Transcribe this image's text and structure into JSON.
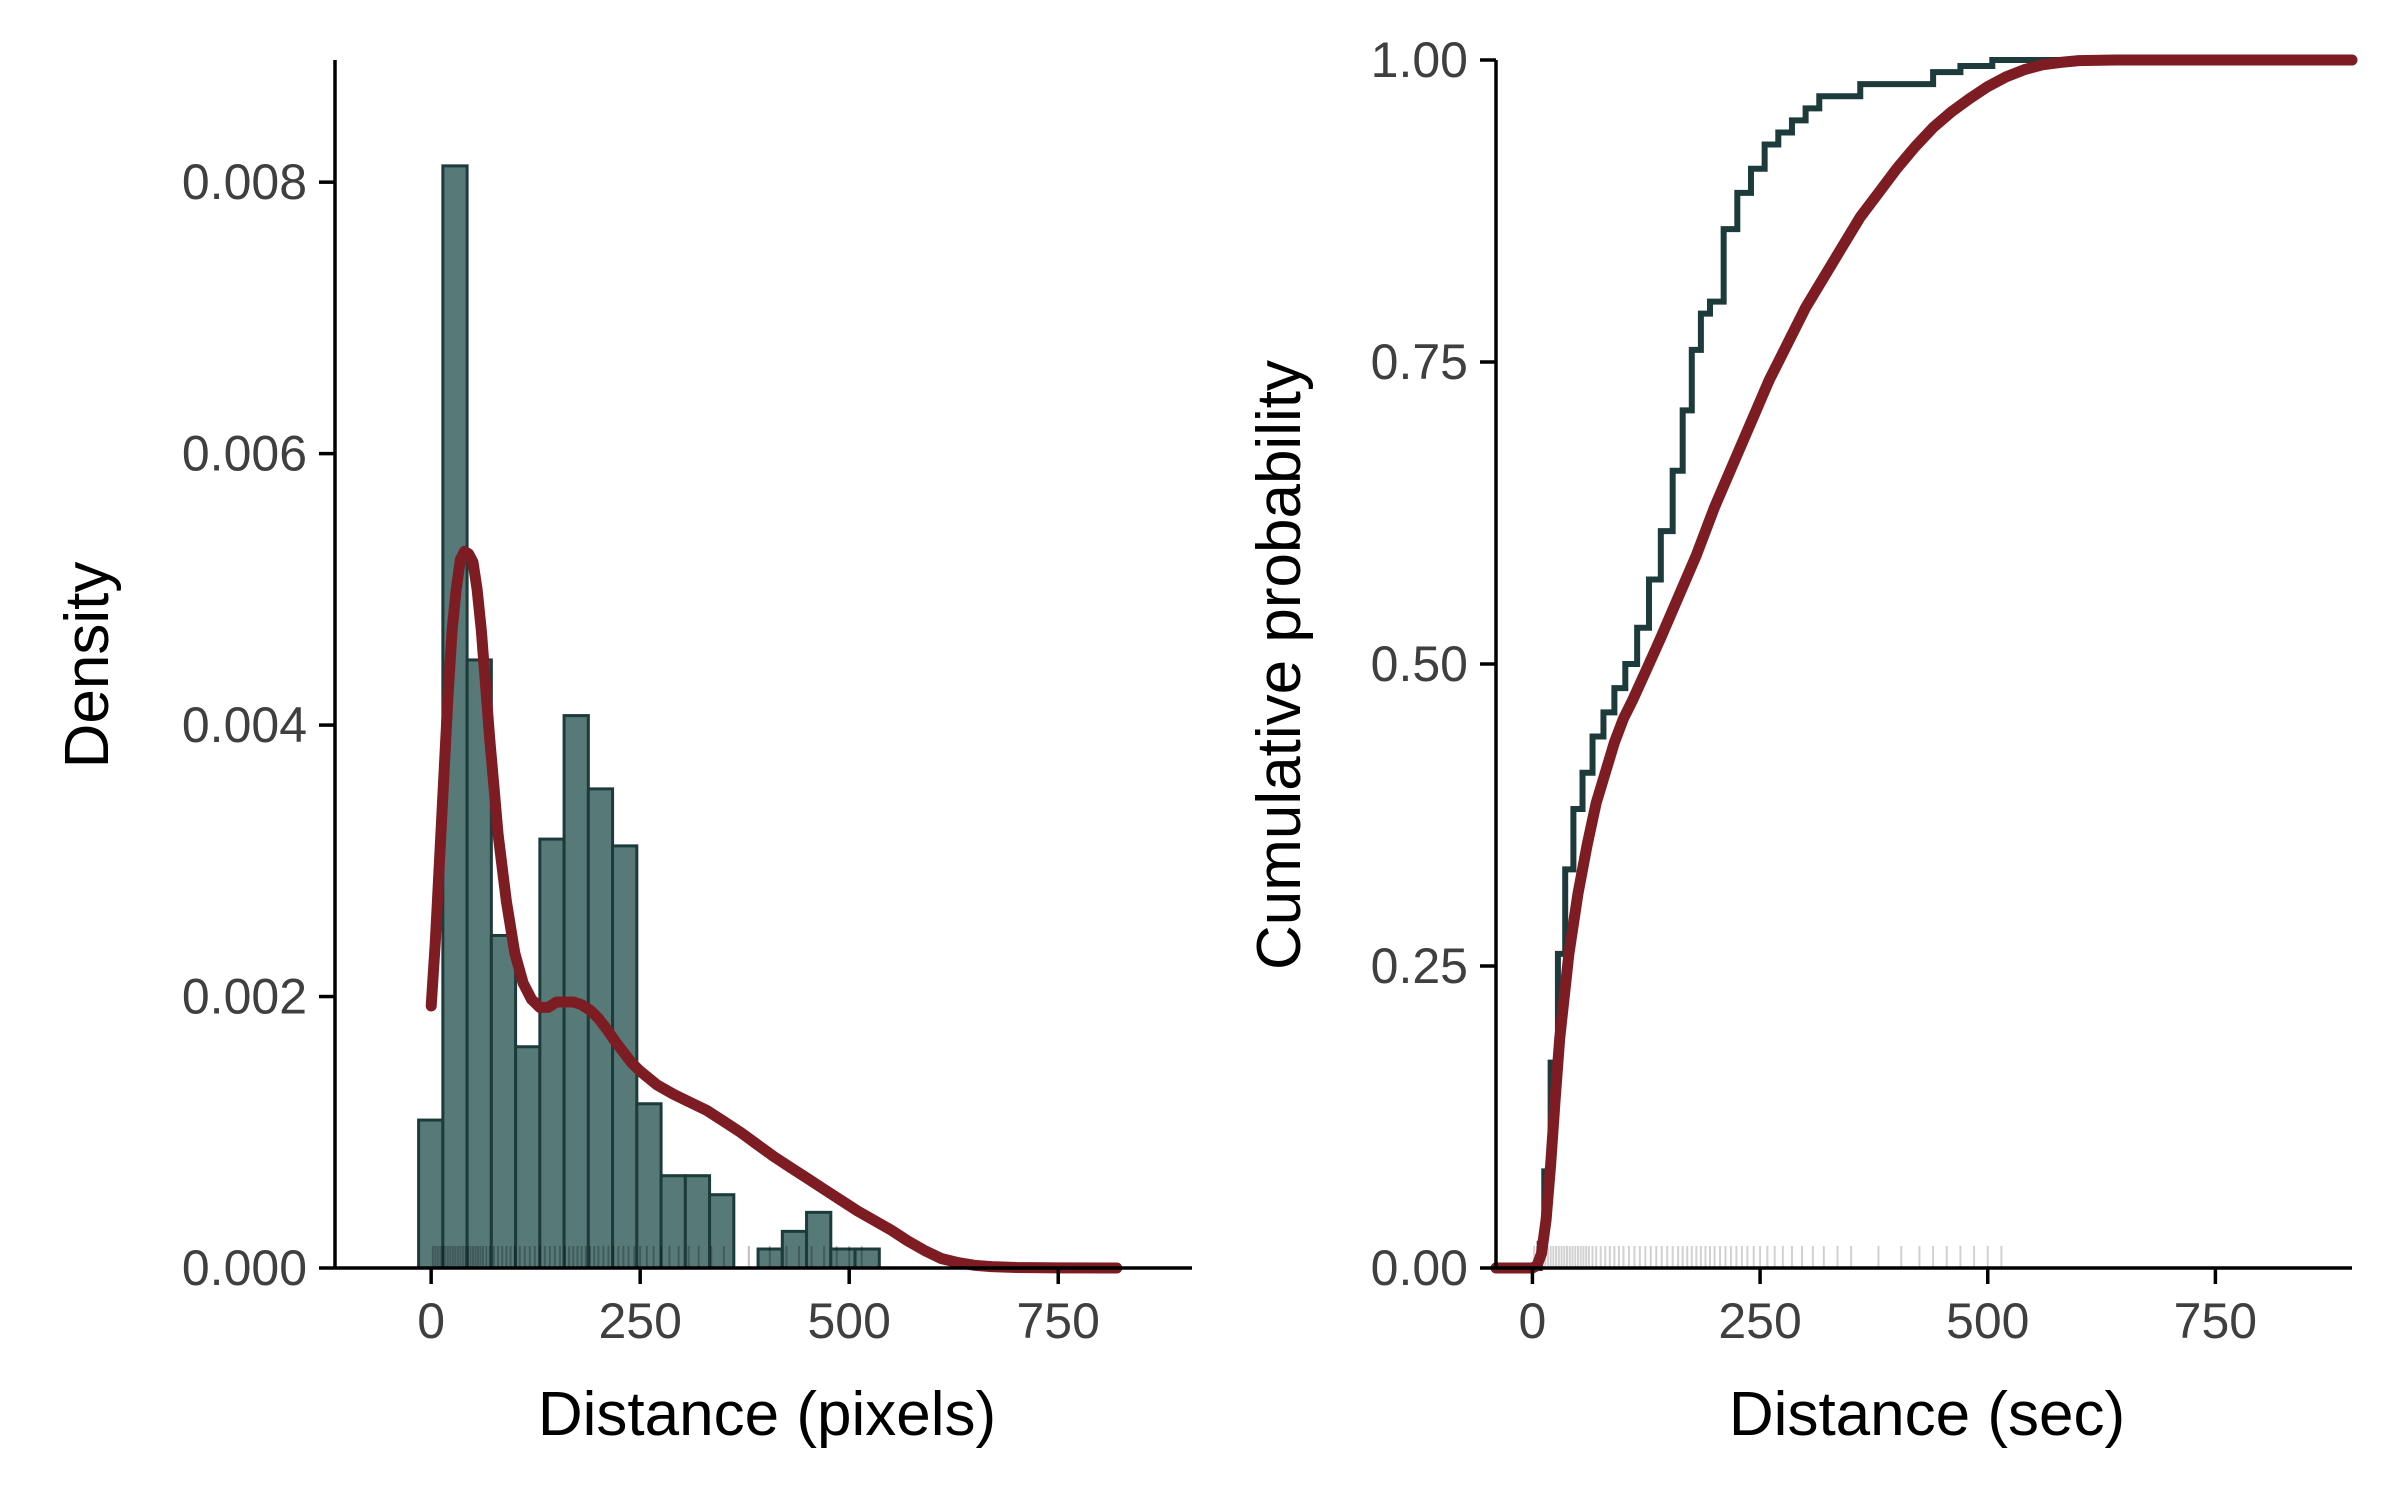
{
  "colors": {
    "bar_fill": "#577a79",
    "bar_edge": "#1d3b3b",
    "curve": "#7d1d23",
    "ecdf": "#1d3b3b",
    "rug": "#000000"
  },
  "chart_data": [
    {
      "type": "bar",
      "subtype": "histogram-with-density",
      "xlabel": "Distance (pixels)",
      "ylabel": "Density",
      "xlim": [
        -115,
        910
      ],
      "ylim": [
        0,
        0.0089
      ],
      "xticks": [
        0,
        250,
        500,
        750
      ],
      "xtick_labels": [
        "0",
        "250",
        "500",
        "750"
      ],
      "yticks": [
        0,
        0.002,
        0.004,
        0.006,
        0.008
      ],
      "ytick_labels": [
        "0.000",
        "0.002",
        "0.004",
        "0.006",
        "0.008"
      ],
      "grid": false,
      "histogram": {
        "bin_edges": [
          -15,
          14,
          43,
          72,
          101,
          130,
          159,
          188,
          217,
          246,
          275,
          304,
          333,
          362,
          391,
          420,
          449,
          478,
          507,
          536
        ],
        "values": [
          0.00109,
          0.00812,
          0.00448,
          0.00245,
          0.00163,
          0.00316,
          0.00407,
          0.00353,
          0.00311,
          0.00121,
          0.00068,
          0.00068,
          0.00054,
          0,
          0.00014,
          0.00027,
          0.00041,
          0.00014,
          0.00014
        ]
      },
      "density_curve": {
        "x": [
          0,
          5,
          10,
          15,
          20,
          25,
          30,
          35,
          40,
          45,
          50,
          55,
          60,
          65,
          70,
          75,
          80,
          90,
          100,
          110,
          120,
          130,
          140,
          150,
          160,
          170,
          180,
          190,
          200,
          210,
          220,
          230,
          240,
          250,
          270,
          290,
          310,
          330,
          350,
          370,
          390,
          410,
          430,
          450,
          470,
          490,
          510,
          530,
          550,
          570,
          590,
          610,
          630,
          650,
          670,
          700,
          750,
          820
        ],
        "y": [
          0.00193,
          0.0024,
          0.003,
          0.0036,
          0.0042,
          0.0047,
          0.005,
          0.00522,
          0.00528,
          0.00526,
          0.0052,
          0.005,
          0.0047,
          0.0043,
          0.0039,
          0.00355,
          0.0032,
          0.0027,
          0.00232,
          0.0021,
          0.00198,
          0.00192,
          0.00192,
          0.00196,
          0.00196,
          0.00196,
          0.00194,
          0.0019,
          0.00184,
          0.00176,
          0.00167,
          0.00159,
          0.00151,
          0.00145,
          0.00135,
          0.00128,
          0.00122,
          0.00116,
          0.00108,
          0.001,
          0.00091,
          0.00082,
          0.00074,
          0.00066,
          0.00058,
          0.0005,
          0.00042,
          0.00035,
          0.00028,
          0.0002,
          0.00013,
          7e-05,
          4e-05,
          2e-05,
          1e-05,
          4e-06,
          1e-06,
          0
        ]
      },
      "rug": [
        2,
        5,
        8,
        11,
        14,
        17,
        20,
        23,
        26,
        29,
        32,
        35,
        38,
        41,
        44,
        47,
        50,
        53,
        56,
        59,
        62,
        66,
        70,
        75,
        80,
        85,
        90,
        95,
        100,
        106,
        112,
        118,
        124,
        130,
        136,
        142,
        148,
        154,
        160,
        165,
        170,
        175,
        180,
        185,
        190,
        195,
        200,
        206,
        212,
        218,
        224,
        230,
        236,
        243,
        250,
        258,
        266,
        275,
        285,
        296,
        308,
        320,
        335,
        350,
        380,
        405,
        425,
        440,
        455,
        470,
        485,
        500,
        515
      ]
    },
    {
      "type": "line",
      "subtype": "ecdf",
      "xlabel": "Distance (sec)",
      "ylabel": "Cumulative probability",
      "xlim": [
        -40,
        900
      ],
      "ylim": [
        0,
        1
      ],
      "xticks": [
        0,
        250,
        500,
        750
      ],
      "xtick_labels": [
        "0",
        "250",
        "500",
        "750"
      ],
      "yticks": [
        0,
        0.25,
        0.5,
        0.75,
        1.0
      ],
      "ytick_labels": [
        "0.00",
        "0.25",
        "0.50",
        "0.75",
        "1.00"
      ],
      "grid": false,
      "series": [
        {
          "x": [
            -40,
            3,
            8,
            13,
            20,
            28,
            36,
            45,
            55,
            66,
            78,
            90,
            102,
            115,
            128,
            141,
            154,
            165,
            175,
            185,
            195,
            210,
            225,
            240,
            255,
            270,
            285,
            300,
            315,
            330,
            345,
            360,
            385,
            410,
            440,
            470,
            505,
            540,
            900
          ],
          "y": [
            0,
            0,
            0.02,
            0.08,
            0.17,
            0.26,
            0.33,
            0.38,
            0.41,
            0.44,
            0.46,
            0.48,
            0.5,
            0.53,
            0.57,
            0.61,
            0.66,
            0.71,
            0.76,
            0.79,
            0.8,
            0.86,
            0.89,
            0.91,
            0.93,
            0.94,
            0.95,
            0.96,
            0.97,
            0.97,
            0.97,
            0.98,
            0.98,
            0.98,
            0.99,
            0.995,
            1.0,
            1.0,
            1.0
          ]
        },
        {
          "x": [
            -40,
            0,
            5,
            10,
            15,
            20,
            25,
            30,
            40,
            50,
            60,
            70,
            80,
            90,
            100,
            110,
            125,
            140,
            160,
            180,
            200,
            220,
            240,
            260,
            280,
            300,
            320,
            340,
            360,
            380,
            400,
            420,
            440,
            460,
            480,
            500,
            520,
            540,
            560,
            580,
            600,
            640,
            700,
            800,
            900
          ],
          "y": [
            0,
            0,
            0.002,
            0.012,
            0.04,
            0.085,
            0.14,
            0.19,
            0.26,
            0.31,
            0.35,
            0.385,
            0.41,
            0.435,
            0.455,
            0.47,
            0.495,
            0.52,
            0.555,
            0.59,
            0.63,
            0.665,
            0.7,
            0.735,
            0.765,
            0.795,
            0.82,
            0.845,
            0.87,
            0.89,
            0.91,
            0.928,
            0.944,
            0.957,
            0.968,
            0.978,
            0.986,
            0.992,
            0.996,
            0.998,
            0.9995,
            1.0,
            1.0,
            1.0,
            1.0
          ]
        }
      ],
      "rug": [
        2,
        5,
        8,
        11,
        14,
        17,
        20,
        23,
        26,
        29,
        32,
        35,
        38,
        41,
        44,
        47,
        50,
        53,
        56,
        59,
        62,
        66,
        70,
        75,
        80,
        85,
        90,
        95,
        100,
        106,
        112,
        118,
        124,
        130,
        136,
        142,
        148,
        154,
        160,
        165,
        170,
        175,
        180,
        185,
        190,
        195,
        200,
        206,
        212,
        218,
        224,
        230,
        236,
        243,
        250,
        258,
        266,
        275,
        285,
        296,
        308,
        320,
        335,
        350,
        380,
        405,
        425,
        440,
        455,
        470,
        485,
        500,
        515
      ]
    }
  ]
}
